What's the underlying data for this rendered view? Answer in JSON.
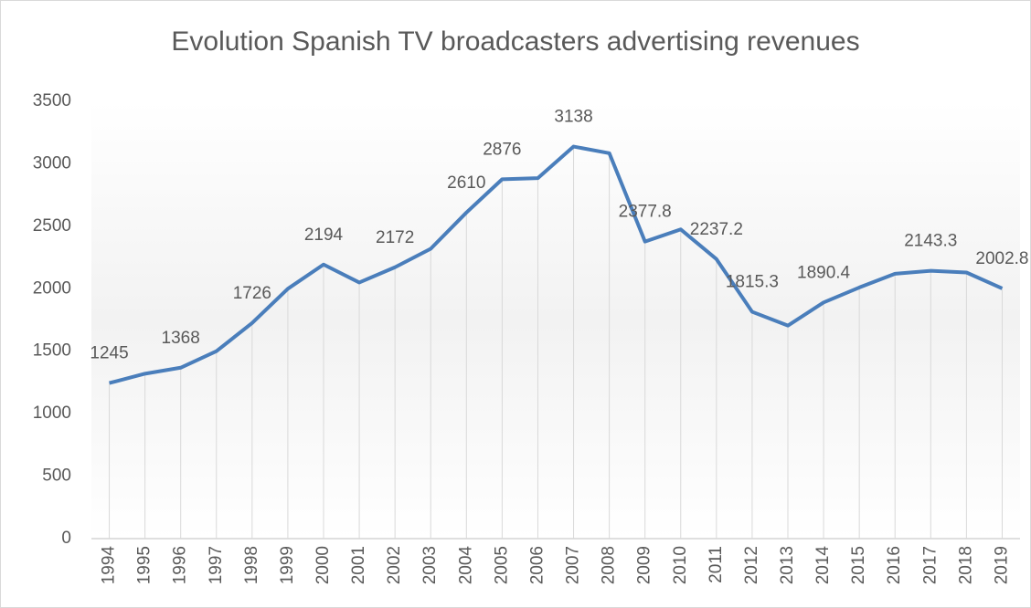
{
  "chart_data": {
    "type": "line",
    "title": "Evolution Spanish TV broadcasters advertising revenues",
    "categories": [
      "1994",
      "1995",
      "1996",
      "1997",
      "1998",
      "1999",
      "2000",
      "2001",
      "2002",
      "2003",
      "2004",
      "2005",
      "2006",
      "2007",
      "2008",
      "2009",
      "2010",
      "2011",
      "2012",
      "2013",
      "2014",
      "2015",
      "2016",
      "2017",
      "2018",
      "2019"
    ],
    "series": [
      {
        "name": "Revenues",
        "color": "#4a7ebb",
        "values": [
          1245,
          1320,
          1368,
          1500,
          1726,
          2000,
          2194,
          2050,
          2172,
          2320,
          2610,
          2876,
          2885,
          3138,
          3085,
          2377.8,
          2475,
          2237.2,
          1815.3,
          1705,
          1890.4,
          2010,
          2120,
          2143.3,
          2130,
          2002.8
        ]
      }
    ],
    "data_labels": [
      true,
      false,
      true,
      false,
      true,
      false,
      true,
      false,
      true,
      false,
      true,
      true,
      false,
      true,
      false,
      true,
      false,
      true,
      true,
      false,
      true,
      false,
      false,
      true,
      false,
      true
    ],
    "ylim": [
      0,
      3500
    ],
    "yticks": [
      0,
      500,
      1000,
      1500,
      2000,
      2500,
      3000,
      3500
    ],
    "drop_lines": true
  }
}
